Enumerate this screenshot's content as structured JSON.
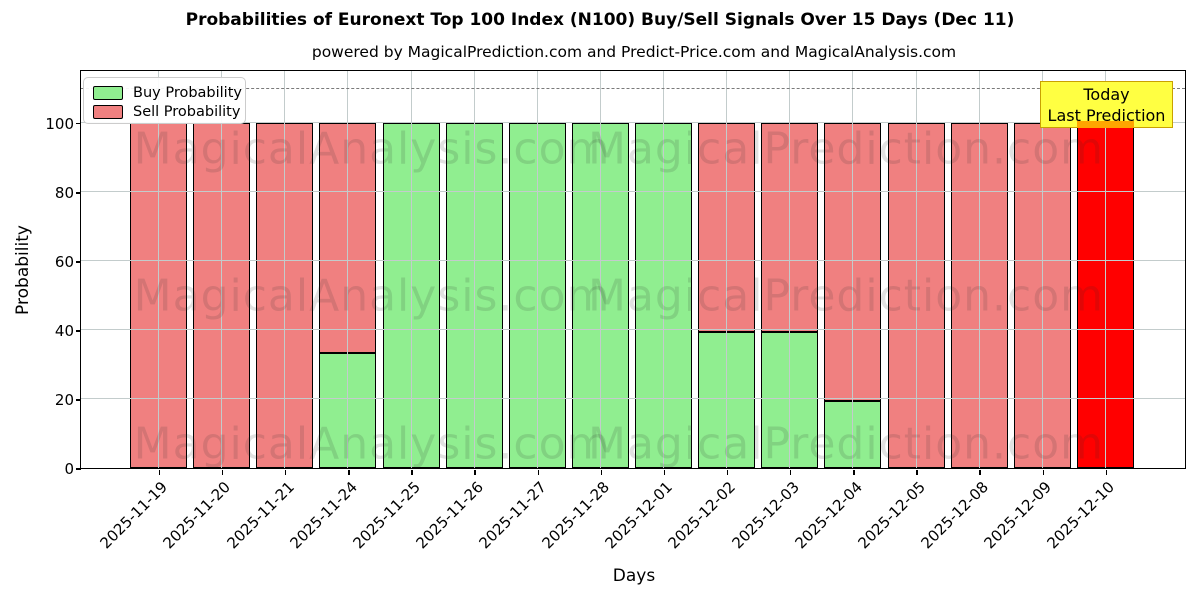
{
  "header": {
    "title": "Probabilities of Euronext Top 100 Index (N100) Buy/Sell Signals Over 15 Days (Dec 11)",
    "subtitle": "powered by MagicalPrediction.com and Predict-Price.com and MagicalAnalysis.com"
  },
  "legend": {
    "items": [
      {
        "label": "Buy Probability",
        "color": "#90ee90"
      },
      {
        "label": "Sell Probability",
        "color": "#f08080"
      }
    ]
  },
  "annotation": {
    "lines": [
      "Today",
      "Last Prediction"
    ],
    "bg_color": "#ffff42",
    "border_color": "#c9a100"
  },
  "watermarks": {
    "texts": [
      "MagicalAnalysis.com",
      "MagicalPrediction.com"
    ]
  },
  "axes": {
    "xlabel": "Days",
    "ylabel": "Probability",
    "yticks": [
      0,
      20,
      40,
      60,
      80,
      100
    ],
    "ylim": [
      0,
      115
    ],
    "dashed_line_y": 110,
    "grid": true
  },
  "chart_data": {
    "type": "bar",
    "stacked": true,
    "title": "Probabilities of Euronext Top 100 Index (N100) Buy/Sell Signals Over 15 Days (Dec 11)",
    "xlabel": "Days",
    "ylabel": "Probability",
    "ylim": [
      0,
      115
    ],
    "legend_position": "upper left",
    "categories": [
      "2025-11-19",
      "2025-11-20",
      "2025-11-21",
      "2025-11-24",
      "2025-11-25",
      "2025-11-26",
      "2025-11-27",
      "2025-11-28",
      "2025-12-01",
      "2025-12-02",
      "2025-12-03",
      "2025-12-04",
      "2025-12-05",
      "2025-12-08",
      "2025-12-09",
      "2025-12-10"
    ],
    "series": [
      {
        "name": "Buy Probability",
        "color": "#90ee90",
        "values": [
          0,
          0,
          0,
          33.3,
          100,
          100,
          100,
          100,
          100,
          39.4,
          39.4,
          19.4,
          0,
          0,
          0,
          0
        ]
      },
      {
        "name": "Sell Probability",
        "color": "#f08080",
        "values": [
          100,
          100,
          100,
          66.7,
          0,
          0,
          0,
          0,
          0,
          60.6,
          60.6,
          80.6,
          100,
          100,
          100,
          100
        ]
      }
    ],
    "highlight": {
      "index": 15,
      "date": "2025-12-10",
      "bar_color": "#ff0000",
      "marker_color": "#ffa500",
      "label": "Today Last Prediction"
    }
  }
}
